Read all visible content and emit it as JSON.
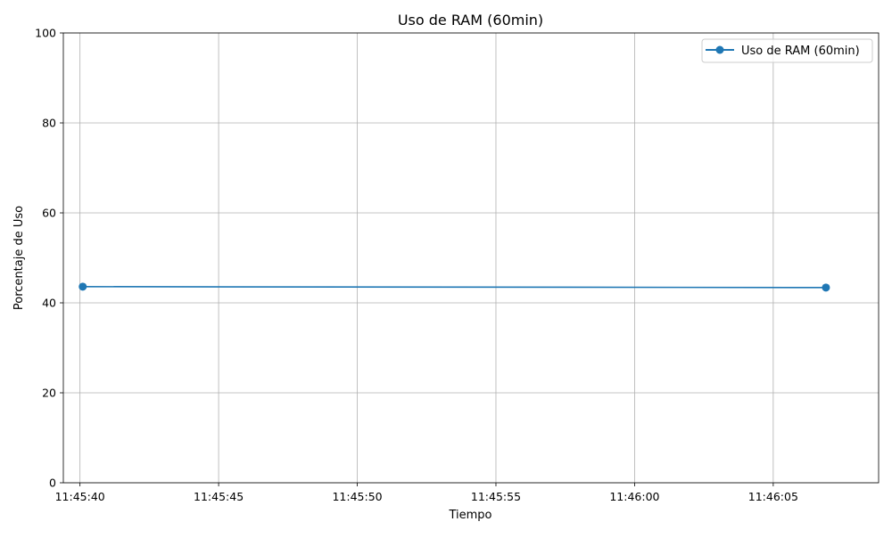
{
  "chart_data": {
    "type": "line",
    "title": "Uso de RAM (60min)",
    "xlabel": "Tiempo",
    "ylabel": "Porcentaje de Uso",
    "x_ticks": [
      "11:45:40",
      "11:45:45",
      "11:45:50",
      "11:45:55",
      "11:46:00",
      "11:46:05"
    ],
    "y_ticks": [
      "0",
      "20",
      "40",
      "60",
      "80",
      "100"
    ],
    "ylim": [
      0,
      100
    ],
    "xlim": [
      "11:45:39.4",
      "11:46:08.8"
    ],
    "grid": true,
    "legend_position": "top-right",
    "series": [
      {
        "name": "Uso de RAM (60min)",
        "color": "#1f77b4",
        "marker": "circle",
        "x": [
          "11:45:40.1",
          "11:46:06.9"
        ],
        "values": [
          43.6,
          43.4
        ]
      }
    ]
  }
}
